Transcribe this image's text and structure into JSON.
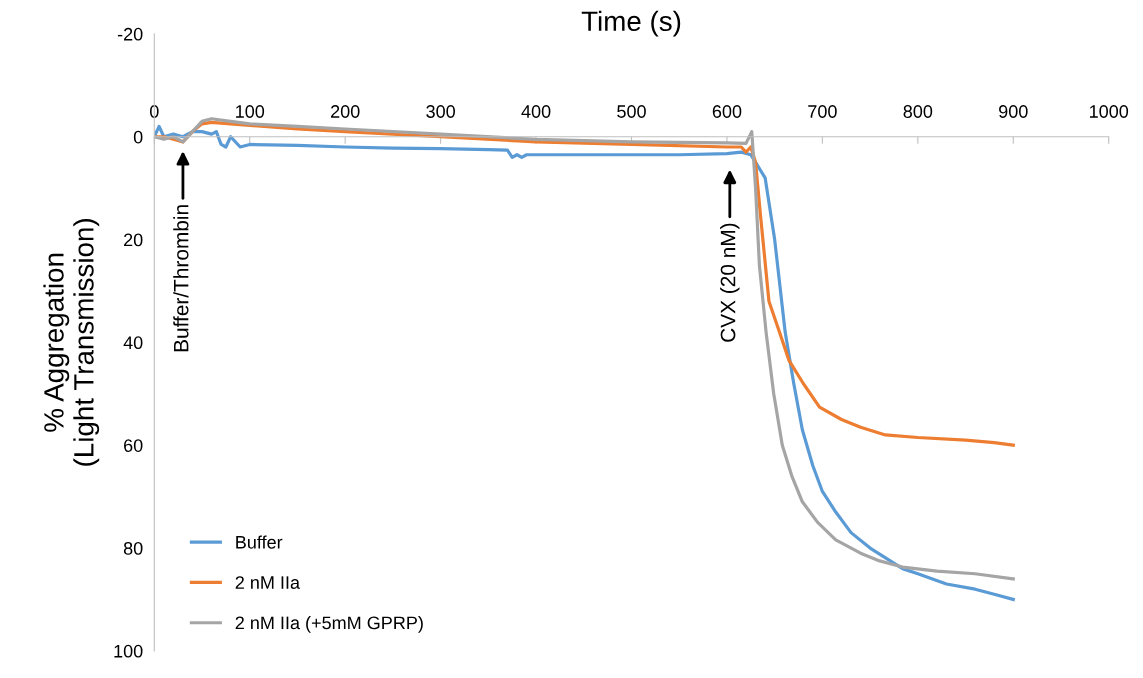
{
  "chart_data": {
    "type": "line",
    "xlabel": "Time (s)",
    "ylabel": "% Aggregation\n(Light Transmission)",
    "xlim": [
      0,
      1000
    ],
    "xticks": [
      0,
      100,
      200,
      300,
      400,
      500,
      600,
      700,
      800,
      900,
      1000
    ],
    "ylim": [
      100,
      -20
    ],
    "yticks": [
      -20,
      0,
      20,
      40,
      60,
      80,
      100
    ],
    "grid": false,
    "legend": "bottom left",
    "marker": "none",
    "line_style": "solid",
    "series": [
      {
        "name": "Buffer",
        "color": "#5b9bd5",
        "x": [
          0,
          5,
          10,
          20,
          30,
          40,
          50,
          60,
          65,
          70,
          75,
          80,
          90,
          100,
          150,
          200,
          250,
          300,
          350,
          370,
          375,
          380,
          385,
          390,
          400,
          450,
          500,
          550,
          600,
          615,
          625,
          630,
          640,
          650,
          661,
          670,
          679,
          690,
          700,
          714,
          730,
          750,
          784,
          800,
          830,
          860,
          880,
          900
        ],
        "values": [
          0,
          -2,
          0,
          -0.5,
          0,
          -1,
          -1,
          -0.5,
          -1,
          1.5,
          2,
          0,
          2,
          1.5,
          1.7,
          2,
          2.2,
          2.3,
          2.5,
          2.6,
          4,
          3.5,
          4,
          3.5,
          3.5,
          3.5,
          3.5,
          3.5,
          3.3,
          3,
          3.5,
          5,
          8,
          20,
          38,
          48,
          57,
          64,
          69,
          73,
          77,
          80,
          84,
          85,
          87,
          88,
          89,
          90
        ]
      },
      {
        "name": "2 nM IIa",
        "color": "#ed7d31",
        "x": [
          0,
          10,
          20,
          30,
          40,
          50,
          60,
          80,
          100,
          150,
          200,
          300,
          400,
          500,
          600,
          615,
          620,
          625,
          630,
          635,
          644,
          655,
          665,
          680,
          697,
          720,
          740,
          766,
          800,
          850,
          880,
          900
        ],
        "values": [
          0,
          0,
          0.5,
          1,
          -1,
          -2.5,
          -2.8,
          -2.5,
          -2.2,
          -1.5,
          -1,
          0,
          1,
          1.5,
          2,
          2,
          3,
          2,
          5,
          15,
          32,
          38,
          43.5,
          48,
          52.6,
          55,
          56.5,
          58,
          58.5,
          59,
          59.5,
          60
        ]
      },
      {
        "name": "2 nM IIa (+5mM GPRP)",
        "color": "#a5a5a5",
        "x": [
          0,
          10,
          20,
          30,
          40,
          50,
          60,
          80,
          100,
          150,
          200,
          300,
          400,
          500,
          600,
          620,
          626,
          630,
          634,
          641,
          649,
          658,
          668,
          679,
          695,
          714,
          740,
          760,
          784,
          820,
          860,
          900
        ],
        "values": [
          0,
          0.5,
          0,
          1,
          -1,
          -3,
          -3.5,
          -3,
          -2.5,
          -2,
          -1.5,
          -0.5,
          0.5,
          1,
          1.2,
          1.3,
          -1,
          10,
          25,
          38,
          50,
          60,
          66,
          71,
          75,
          78.4,
          81,
          82.5,
          83.7,
          84.5,
          85,
          86
        ]
      }
    ],
    "annotations": [
      "Buffer/Thrombin",
      "CVX (20 nM)"
    ]
  }
}
